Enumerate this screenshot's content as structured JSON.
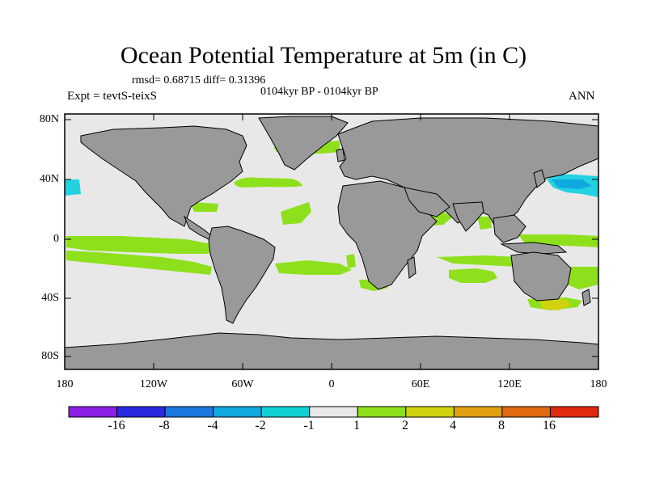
{
  "title": "Ocean Potential Temperature at 5m (in C)",
  "stats": "rmsd= 0.68715 diff= 0.31396",
  "experiment": "Expt = tevtS-teixS",
  "period": "0104kyr BP - 0104kyr BP",
  "season": "ANN",
  "lat_labels": [
    "80N",
    "40N",
    "0",
    "40S",
    "80S"
  ],
  "lon_labels": [
    "180",
    "120W",
    "60W",
    "0",
    "60E",
    "120E",
    "180"
  ],
  "colorbar": {
    "labels": [
      "-16",
      "-8",
      "-4",
      "-2",
      "-1",
      "1",
      "2",
      "4",
      "8",
      "16"
    ],
    "colors": [
      "#8c1ee6",
      "#2a28e0",
      "#1a78e0",
      "#10a8e0",
      "#10d2d2",
      "#e8e8e8",
      "#8ee01c",
      "#d0d20e",
      "#e0a010",
      "#e06a10",
      "#e02a10"
    ]
  },
  "colors": {
    "land": "#999999",
    "ocean_neutral": "#e8e8e8",
    "warm": "#8ee01c",
    "cool": "#22d2e0"
  }
}
